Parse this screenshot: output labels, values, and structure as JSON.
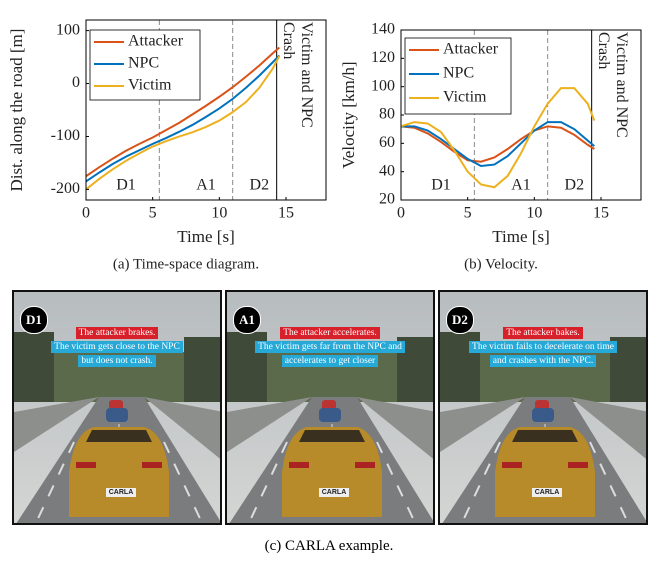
{
  "chart_data": [
    {
      "type": "line",
      "caption": "(a) Time-space diagram.",
      "xlabel": "Time [s]",
      "ylabel": "Dist. along the road [m]",
      "x": [
        0,
        1,
        2,
        3,
        4,
        5,
        6,
        7,
        8,
        9,
        10,
        11,
        12,
        13,
        14,
        14.5
      ],
      "series": [
        {
          "name": "Attacker",
          "color": "#D95319",
          "values": [
            -175,
            -158,
            -142,
            -127,
            -114,
            -102,
            -88,
            -74,
            -58,
            -42,
            -25,
            -7,
            13,
            34,
            57,
            68
          ]
        },
        {
          "name": "NPC",
          "color": "#0072BD",
          "values": [
            -185,
            -168,
            -152,
            -138,
            -126,
            -114,
            -103,
            -91,
            -78,
            -63,
            -47,
            -29,
            -8,
            15,
            40,
            53
          ]
        },
        {
          "name": "Victim",
          "color": "#EDB120",
          "values": [
            -200,
            -180,
            -162,
            -146,
            -132,
            -119,
            -109,
            -100,
            -92,
            -82,
            -70,
            -54,
            -35,
            -8,
            28,
            52
          ]
        }
      ],
      "xlim": [
        0,
        18
      ],
      "xticks": [
        0,
        5,
        10,
        15
      ],
      "ylim": [
        -220,
        120
      ],
      "yticks": [
        -200,
        -100,
        0,
        100
      ],
      "phase_boundaries": [
        5.5,
        11,
        14.3
      ],
      "annotations": [
        "D1",
        "A1",
        "D2",
        "Crash",
        "Victim and NPC"
      ],
      "legend": "upper left",
      "grid": false
    },
    {
      "type": "line",
      "caption": "(b) Velocity.",
      "xlabel": "Time [s]",
      "ylabel": "Velocity [km/h]",
      "x": [
        0,
        1,
        2,
        3,
        4,
        5,
        6,
        7,
        8,
        9,
        10,
        11,
        12,
        13,
        14,
        14.5
      ],
      "series": [
        {
          "name": "Attacker",
          "color": "#D95319",
          "values": [
            72,
            71,
            67,
            61,
            54,
            48,
            47,
            50,
            56,
            63,
            69,
            72,
            71,
            66,
            59,
            56
          ]
        },
        {
          "name": "NPC",
          "color": "#0072BD",
          "values": [
            72,
            72,
            69,
            63,
            56,
            49,
            44,
            45,
            51,
            60,
            69,
            75,
            75,
            70,
            62,
            58
          ]
        },
        {
          "name": "Victim",
          "color": "#EDB120",
          "values": [
            72,
            75,
            74,
            68,
            55,
            40,
            31,
            29,
            37,
            53,
            72,
            88,
            99,
            99,
            88,
            76
          ]
        }
      ],
      "xlim": [
        0,
        18
      ],
      "xticks": [
        0,
        5,
        10,
        15
      ],
      "ylim": [
        20,
        140
      ],
      "yticks": [
        20,
        40,
        60,
        80,
        100,
        120,
        140
      ],
      "phase_boundaries": [
        5.5,
        11,
        14.3
      ],
      "annotations": [
        "D1",
        "A1",
        "D2",
        "Crash",
        "Victim and NPC"
      ],
      "legend": "upper left",
      "grid": false
    }
  ],
  "panels": [
    {
      "label": "D1",
      "attacker_text": "The attacker brakes.",
      "victim_text": [
        "The victim gets close to the NPC",
        "but does not crash."
      ],
      "plate": "CARLA"
    },
    {
      "label": "A1",
      "attacker_text": "The attacker accelerates.",
      "victim_text": [
        "The victim gets far from the NPC and",
        "accelerates to get closer"
      ],
      "plate": "CARLA"
    },
    {
      "label": "D2",
      "attacker_text": "The attacker bakes.",
      "victim_text": [
        "The victim fails to decelerate on time",
        "and crashes with the NPC."
      ],
      "plate": "CARLA"
    }
  ],
  "figure_caption": "(c) CARLA example."
}
